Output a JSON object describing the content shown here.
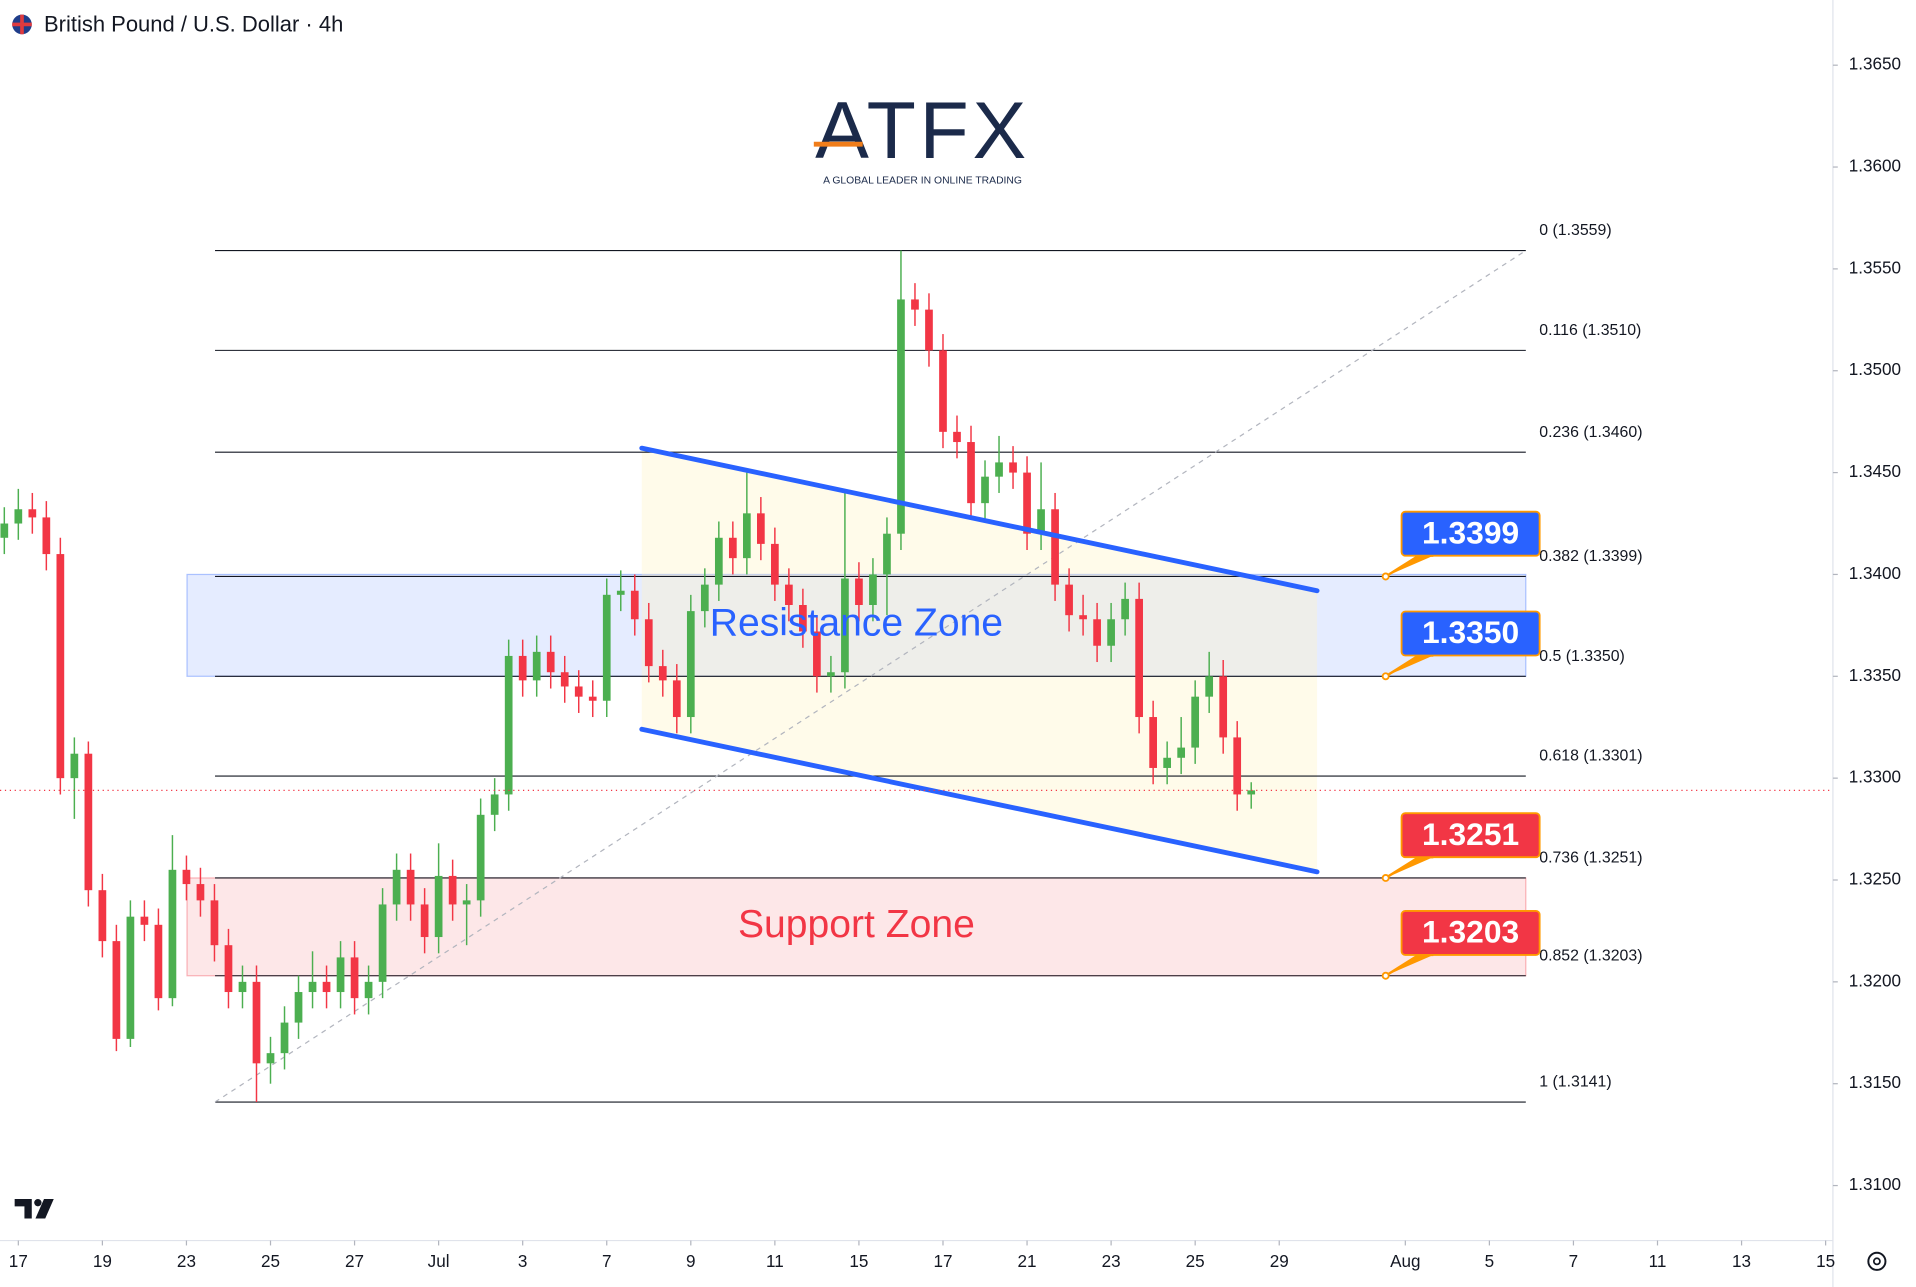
{
  "chart_data": {
    "type": "candlestick",
    "title": "British Pound / U.S. Dollar · 4h",
    "logo": {
      "name": "ATFX",
      "tagline": "A GLOBAL LEADER IN ONLINE TRADING"
    },
    "up_color": "#4caf50",
    "down_color": "#f23645",
    "xlim": [
      -1.308,
      129.52
    ],
    "ylim": [
      1.3073,
      1.3682
    ],
    "xticks": [
      {
        "value": 0,
        "label": "17"
      },
      {
        "value": 6,
        "label": "19"
      },
      {
        "value": 12,
        "label": "23"
      },
      {
        "value": 18,
        "label": "25"
      },
      {
        "value": 24,
        "label": "27"
      },
      {
        "value": 30,
        "label": "Jul"
      },
      {
        "value": 36,
        "label": "3"
      },
      {
        "value": 42,
        "label": "7"
      },
      {
        "value": 48,
        "label": "9"
      },
      {
        "value": 54,
        "label": "11"
      },
      {
        "value": 60,
        "label": "15"
      },
      {
        "value": 66,
        "label": "17"
      },
      {
        "value": 72,
        "label": "21"
      },
      {
        "value": 78,
        "label": "23"
      },
      {
        "value": 84,
        "label": "25"
      },
      {
        "value": 90,
        "label": "29"
      },
      {
        "value": 99,
        "label": "Aug"
      },
      {
        "value": 105,
        "label": "5"
      },
      {
        "value": 111,
        "label": "7"
      },
      {
        "value": 117,
        "label": "11"
      },
      {
        "value": 123,
        "label": "13"
      },
      {
        "value": 129,
        "label": "15"
      }
    ],
    "yticks": [
      {
        "value": 1.31,
        "label": "1.3100"
      },
      {
        "value": 1.315,
        "label": "1.3150"
      },
      {
        "value": 1.32,
        "label": "1.3200"
      },
      {
        "value": 1.325,
        "label": "1.3250"
      },
      {
        "value": 1.33,
        "label": "1.3300"
      },
      {
        "value": 1.335,
        "label": "1.3350"
      },
      {
        "value": 1.34,
        "label": "1.3400"
      },
      {
        "value": 1.345,
        "label": "1.3450"
      },
      {
        "value": 1.35,
        "label": "1.3500"
      },
      {
        "value": 1.355,
        "label": "1.3550"
      },
      {
        "value": 1.36,
        "label": "1.3600"
      },
      {
        "value": 1.365,
        "label": "1.3650"
      }
    ],
    "x": [
      -1,
      0,
      1,
      2,
      3,
      4,
      5,
      6,
      7,
      8,
      9,
      10,
      11,
      12,
      13,
      14,
      15,
      16,
      17,
      18,
      19,
      20,
      21,
      22,
      23,
      24,
      25,
      26,
      27,
      28,
      29,
      30,
      31,
      32,
      33,
      34,
      35,
      36,
      37,
      38,
      39,
      40,
      41,
      42,
      43,
      44,
      45,
      46,
      47,
      48,
      49,
      50,
      51,
      52,
      53,
      54,
      55,
      56,
      57,
      58,
      59,
      60,
      61,
      62,
      63,
      64,
      65,
      66,
      67,
      68,
      69,
      70,
      71,
      72,
      73,
      74,
      75,
      76,
      77,
      78,
      79,
      80,
      81,
      82,
      83,
      84,
      85,
      86,
      87,
      88
    ],
    "ohlc": [
      [
        1.3418,
        1.3433,
        1.341,
        1.3425
      ],
      [
        1.3425,
        1.3442,
        1.3417,
        1.3432
      ],
      [
        1.3432,
        1.344,
        1.342,
        1.3428
      ],
      [
        1.3428,
        1.3436,
        1.3402,
        1.341
      ],
      [
        1.341,
        1.3418,
        1.3292,
        1.33
      ],
      [
        1.33,
        1.332,
        1.328,
        1.3312
      ],
      [
        1.3312,
        1.3318,
        1.3237,
        1.3245
      ],
      [
        1.3245,
        1.3253,
        1.3212,
        1.322
      ],
      [
        1.322,
        1.3228,
        1.3166,
        1.3172
      ],
      [
        1.3172,
        1.324,
        1.3168,
        1.3232
      ],
      [
        1.3232,
        1.324,
        1.322,
        1.3228
      ],
      [
        1.3228,
        1.3236,
        1.3186,
        1.3192
      ],
      [
        1.3192,
        1.3272,
        1.3188,
        1.3255
      ],
      [
        1.3255,
        1.3262,
        1.324,
        1.3248
      ],
      [
        1.3248,
        1.3256,
        1.3232,
        1.324
      ],
      [
        1.324,
        1.3248,
        1.321,
        1.3218
      ],
      [
        1.3218,
        1.3226,
        1.3187,
        1.3195
      ],
      [
        1.3195,
        1.3208,
        1.3187,
        1.32
      ],
      [
        1.32,
        1.3208,
        1.3141,
        1.316
      ],
      [
        1.316,
        1.3173,
        1.315,
        1.3165
      ],
      [
        1.3165,
        1.3188,
        1.3157,
        1.318
      ],
      [
        1.318,
        1.3203,
        1.3172,
        1.3195
      ],
      [
        1.3195,
        1.3215,
        1.3187,
        1.32
      ],
      [
        1.32,
        1.3208,
        1.3187,
        1.3195
      ],
      [
        1.3195,
        1.322,
        1.3187,
        1.3212
      ],
      [
        1.3212,
        1.322,
        1.3184,
        1.3192
      ],
      [
        1.3192,
        1.3208,
        1.3184,
        1.32
      ],
      [
        1.32,
        1.3246,
        1.3192,
        1.3238
      ],
      [
        1.3238,
        1.3263,
        1.323,
        1.3255
      ],
      [
        1.3255,
        1.3263,
        1.323,
        1.3238
      ],
      [
        1.3238,
        1.3246,
        1.3214,
        1.3222
      ],
      [
        1.3222,
        1.3268,
        1.3214,
        1.3252
      ],
      [
        1.3252,
        1.326,
        1.323,
        1.3238
      ],
      [
        1.3238,
        1.3248,
        1.3218,
        1.324
      ],
      [
        1.324,
        1.329,
        1.3232,
        1.3282
      ],
      [
        1.3282,
        1.33,
        1.3274,
        1.3292
      ],
      [
        1.3292,
        1.3368,
        1.3284,
        1.336
      ],
      [
        1.336,
        1.3368,
        1.334,
        1.3348
      ],
      [
        1.3348,
        1.337,
        1.334,
        1.3362
      ],
      [
        1.3362,
        1.337,
        1.3344,
        1.3352
      ],
      [
        1.3352,
        1.336,
        1.3337,
        1.3345
      ],
      [
        1.3345,
        1.3353,
        1.3332,
        1.334
      ],
      [
        1.334,
        1.3348,
        1.333,
        1.3338
      ],
      [
        1.3338,
        1.3398,
        1.333,
        1.339
      ],
      [
        1.339,
        1.3402,
        1.3382,
        1.3392
      ],
      [
        1.3392,
        1.34,
        1.337,
        1.3378
      ],
      [
        1.3378,
        1.3386,
        1.3347,
        1.3355
      ],
      [
        1.3355,
        1.3363,
        1.334,
        1.3348
      ],
      [
        1.3348,
        1.3356,
        1.3322,
        1.333
      ],
      [
        1.333,
        1.339,
        1.3322,
        1.3382
      ],
      [
        1.3382,
        1.3403,
        1.3374,
        1.3395
      ],
      [
        1.3395,
        1.3426,
        1.3387,
        1.3418
      ],
      [
        1.3418,
        1.3426,
        1.34,
        1.3408
      ],
      [
        1.3408,
        1.345,
        1.34,
        1.343
      ],
      [
        1.343,
        1.3438,
        1.3407,
        1.3415
      ],
      [
        1.3415,
        1.3423,
        1.3387,
        1.3395
      ],
      [
        1.3395,
        1.3403,
        1.3377,
        1.3385
      ],
      [
        1.3385,
        1.3393,
        1.3364,
        1.3372
      ],
      [
        1.3372,
        1.338,
        1.3342,
        1.335
      ],
      [
        1.335,
        1.336,
        1.3342,
        1.3352
      ],
      [
        1.3352,
        1.344,
        1.3344,
        1.3398
      ],
      [
        1.3398,
        1.3406,
        1.3377,
        1.3385
      ],
      [
        1.3385,
        1.3408,
        1.3377,
        1.34
      ],
      [
        1.34,
        1.3428,
        1.338,
        1.342
      ],
      [
        1.342,
        1.3559,
        1.3412,
        1.3535
      ],
      [
        1.3535,
        1.3543,
        1.3522,
        1.353
      ],
      [
        1.353,
        1.3538,
        1.3502,
        1.351
      ],
      [
        1.351,
        1.3518,
        1.3462,
        1.347
      ],
      [
        1.347,
        1.3478,
        1.3457,
        1.3465
      ],
      [
        1.3465,
        1.3473,
        1.3427,
        1.3435
      ],
      [
        1.3435,
        1.3456,
        1.3427,
        1.3448
      ],
      [
        1.3448,
        1.3468,
        1.344,
        1.3455
      ],
      [
        1.3455,
        1.3463,
        1.3442,
        1.345
      ],
      [
        1.345,
        1.3458,
        1.3412,
        1.342
      ],
      [
        1.342,
        1.3455,
        1.3412,
        1.3432
      ],
      [
        1.3432,
        1.344,
        1.3387,
        1.3395
      ],
      [
        1.3395,
        1.3403,
        1.3372,
        1.338
      ],
      [
        1.338,
        1.339,
        1.337,
        1.3378
      ],
      [
        1.3378,
        1.3386,
        1.3357,
        1.3365
      ],
      [
        1.3365,
        1.3386,
        1.3357,
        1.3378
      ],
      [
        1.3378,
        1.3396,
        1.337,
        1.3388
      ],
      [
        1.3388,
        1.3396,
        1.3322,
        1.333
      ],
      [
        1.333,
        1.3338,
        1.3297,
        1.3305
      ],
      [
        1.3305,
        1.3318,
        1.3297,
        1.331
      ],
      [
        1.331,
        1.333,
        1.3302,
        1.3315
      ],
      [
        1.3315,
        1.3348,
        1.3307,
        1.334
      ],
      [
        1.334,
        1.3362,
        1.3332,
        1.335
      ],
      [
        1.335,
        1.3358,
        1.3312,
        1.332
      ],
      [
        1.332,
        1.3328,
        1.3284,
        1.3292
      ],
      [
        1.3292,
        1.3298,
        1.3285,
        1.3294
      ]
    ],
    "fib": {
      "from": [
        14.04,
        1.3141
      ],
      "to": [
        107.6,
        1.3559
      ],
      "levels": [
        {
          "value": 1.3559,
          "label": "0 (1.3559)"
        },
        {
          "value": 1.351,
          "label": "0.116 (1.3510)"
        },
        {
          "value": 1.346,
          "label": "0.236 (1.3460)"
        },
        {
          "value": 1.3399,
          "label": "0.382 (1.3399)"
        },
        {
          "value": 1.335,
          "label": "0.5 (1.3350)"
        },
        {
          "value": 1.3301,
          "label": "0.618 (1.3301)"
        },
        {
          "value": 1.3251,
          "label": "0.736 (1.3251)"
        },
        {
          "value": 1.3203,
          "label": "0.852 (1.3203)"
        },
        {
          "value": 1.3141,
          "label": "1 (1.3141)"
        }
      ]
    },
    "zones": [
      {
        "label": "Resistance Zone",
        "from": 12.04,
        "to": 107.6,
        "low": 1.335,
        "high": 1.34,
        "color": "#2962ff"
      },
      {
        "label": "Support Zone",
        "from": 12.04,
        "to": 107.6,
        "low": 1.3203,
        "high": 1.3251,
        "color": "#f23645"
      }
    ],
    "channel": {
      "color": "#2962ff",
      "lines": [
        [
          [
            44.5,
            1.3462
          ],
          [
            92.7,
            1.3392
          ]
        ],
        [
          [
            44.5,
            1.3324
          ],
          [
            92.7,
            1.3254
          ]
        ]
      ]
    },
    "price_tags": [
      {
        "value": 1.3399,
        "label": "1.3399",
        "color": "#2962ff"
      },
      {
        "value": 1.335,
        "label": "1.3350",
        "color": "#2962ff"
      },
      {
        "value": 1.3251,
        "label": "1.3251",
        "color": "#f23645"
      },
      {
        "value": 1.3203,
        "label": "1.3203",
        "color": "#f23645"
      }
    ]
  }
}
